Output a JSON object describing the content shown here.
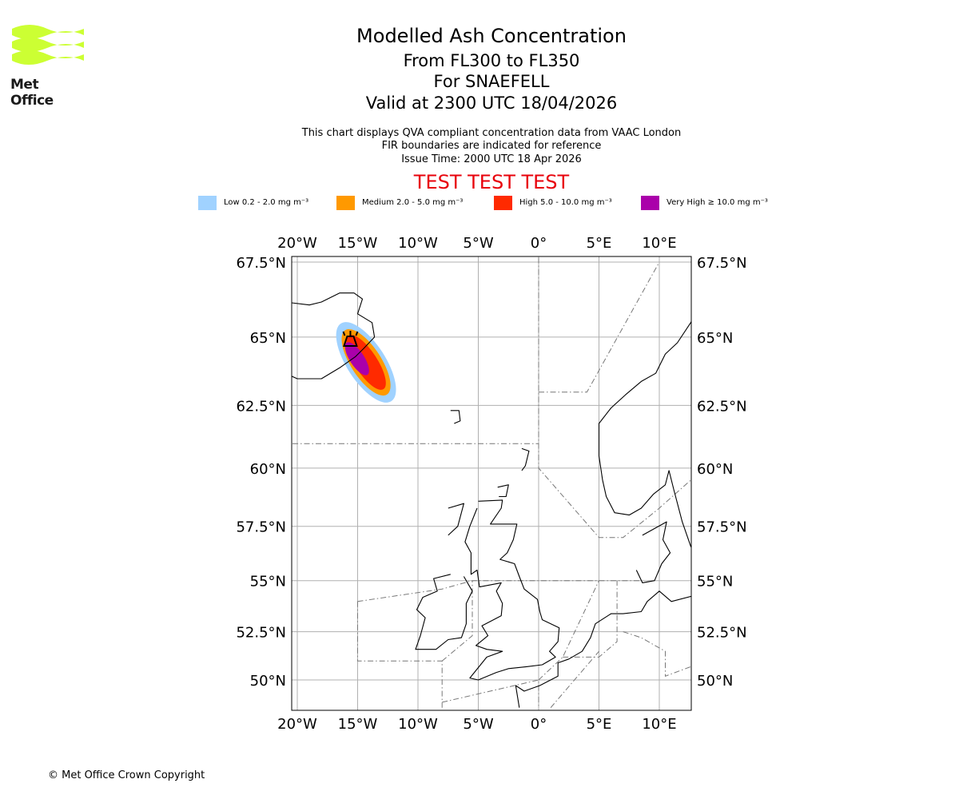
{
  "logo": {
    "text": "Met Office",
    "color": "#ccff33"
  },
  "header": {
    "title": "Modelled Ash Concentration",
    "levels": "From FL300 to FL350",
    "volcano": "For SNAEFELL",
    "valid": "Valid at 2300 UTC 18/04/2026",
    "note1": "This chart displays QVA compliant concentration data from VAAC London",
    "note2": "FIR boundaries are indicated for reference",
    "issue": "Issue Time: 2000 UTC 18 Apr 2026",
    "test": "TEST TEST TEST"
  },
  "legend": [
    {
      "label": "Low 0.2 - 2.0 mg m⁻³",
      "color": "#a0d2ff"
    },
    {
      "label": "Medium 2.0 - 5.0 mg m⁻³",
      "color": "#ff9900"
    },
    {
      "label": "High 5.0 - 10.0 mg m⁻³",
      "color": "#ff2a00"
    },
    {
      "label": "Very High ≥ 10.0 mg m⁻³",
      "color": "#aa00aa"
    }
  ],
  "map": {
    "lon_ticks": [
      {
        "v": -20,
        "label": "20°W"
      },
      {
        "v": -15,
        "label": "15°W"
      },
      {
        "v": -10,
        "label": "10°W"
      },
      {
        "v": -5,
        "label": "5°W"
      },
      {
        "v": 0,
        "label": "0°"
      },
      {
        "v": 5,
        "label": "5°E"
      },
      {
        "v": 10,
        "label": "10°E"
      }
    ],
    "lat_ticks": [
      {
        "v": 67.5,
        "label": "67.5°N"
      },
      {
        "v": 65,
        "label": "65°N"
      },
      {
        "v": 62.5,
        "label": "62.5°N"
      },
      {
        "v": 60,
        "label": "60°N"
      },
      {
        "v": 57.5,
        "label": "57.5°N"
      },
      {
        "v": 55,
        "label": "55°N"
      },
      {
        "v": 52.5,
        "label": "52.5°N"
      },
      {
        "v": 50,
        "label": "50°N"
      }
    ],
    "extent": {
      "lon": [
        -20.4,
        12.6
      ],
      "lat": [
        48.5,
        67.8
      ]
    },
    "volcano": {
      "name": "SNAEFELL",
      "lon": -15.6,
      "lat": 64.8
    }
  },
  "footer": {
    "copyright": "© Met Office Crown Copyright"
  }
}
